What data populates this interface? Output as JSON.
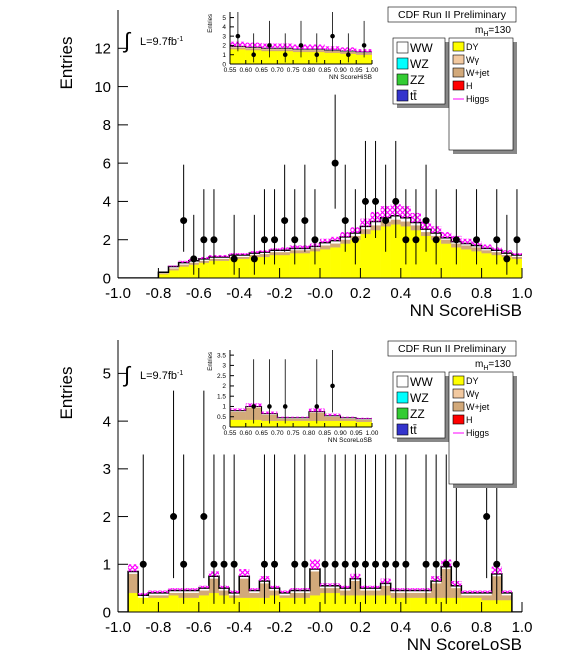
{
  "chart_data": [
    {
      "type": "histogram",
      "title": "CDF Run II Preliminary",
      "mass_label": {
        "base": "m",
        "sub": "H",
        "rest": "=130"
      },
      "lumi_label": {
        "integral": "∫",
        "base": "L=9.7fb",
        "sup": "-1"
      },
      "y_label": "Entries",
      "x_label": "NN ScoreHiSB",
      "xlim": [
        -1,
        1
      ],
      "ylim": [
        0,
        14
      ],
      "xticks": [
        {
          "value": -1,
          "label": "-1.0"
        },
        -0.8,
        -0.6,
        -0.4,
        -0.2,
        {
          "value": 0,
          "label": "-0.0"
        },
        0.2,
        0.4,
        0.6,
        0.8,
        {
          "value": 1,
          "label": "1.0"
        }
      ],
      "yticks": [
        0,
        2,
        4,
        6,
        8,
        10,
        12
      ],
      "bins": [
        -1,
        -0.95,
        -0.9,
        -0.85,
        -0.8,
        -0.75,
        -0.7,
        -0.65,
        -0.6,
        -0.55,
        -0.5,
        -0.45,
        -0.4,
        -0.35,
        -0.3,
        -0.25,
        -0.2,
        -0.15,
        -0.1,
        -0.05,
        0,
        0.05,
        0.1,
        0.15,
        0.2,
        0.25,
        0.3,
        0.35,
        0.4,
        0.45,
        0.5,
        0.55,
        0.6,
        0.65,
        0.7,
        0.75,
        0.8,
        0.85,
        0.9,
        0.95,
        1
      ],
      "series": [
        {
          "name": "DY",
          "color": "#ffff00",
          "values": [
            0,
            0,
            0,
            0,
            0.2,
            0.4,
            0.6,
            0.7,
            0.8,
            0.9,
            0.9,
            1.0,
            1.0,
            1.1,
            1.1,
            1.2,
            1.2,
            1.3,
            1.3,
            1.4,
            1.5,
            1.6,
            1.8,
            2.0,
            2.3,
            2.5,
            2.7,
            2.8,
            2.7,
            2.5,
            2.2,
            2.0,
            1.8,
            1.6,
            1.5,
            1.4,
            1.3,
            1.2,
            1.1,
            1.0
          ]
        },
        {
          "name": "Wγ",
          "color": "#f2c9a0"
        },
        {
          "name": "W+jet",
          "color": "#d2a97a",
          "values": [
            0,
            0,
            0,
            0,
            0.05,
            0.1,
            0.1,
            0.1,
            0.1,
            0.1,
            0.1,
            0.1,
            0.1,
            0.1,
            0.15,
            0.15,
            0.15,
            0.15,
            0.15,
            0.15,
            0.2,
            0.2,
            0.2,
            0.2,
            0.25,
            0.25,
            0.25,
            0.25,
            0.25,
            0.25,
            0.2,
            0.2,
            0.2,
            0.2,
            0.2,
            0.2,
            0.15,
            0.15,
            0.1,
            0.1
          ]
        },
        {
          "name": "H",
          "color": "#ff0000"
        },
        {
          "name": "Higgs",
          "color": "#ff00ff",
          "hatch": true,
          "values": [
            0,
            0,
            0,
            0,
            0,
            0.05,
            0.1,
            0.1,
            0.1,
            0.1,
            0.1,
            0.1,
            0.1,
            0.1,
            0.1,
            0.1,
            0.15,
            0.15,
            0.15,
            0.15,
            0.2,
            0.2,
            0.25,
            0.3,
            0.4,
            0.5,
            0.6,
            0.6,
            0.6,
            0.5,
            0.4,
            0.35,
            0.3,
            0.3,
            0.25,
            0.2,
            0.2,
            0.15,
            0.15,
            0.1
          ]
        },
        {
          "name": "WW",
          "color": "#ffffff",
          "values": [
            0,
            0,
            0,
            0,
            0.05,
            0.1,
            0.1,
            0.1,
            0.1,
            0.1,
            0.1,
            0.1,
            0.1,
            0.1,
            0.1,
            0.1,
            0.1,
            0.1,
            0.1,
            0.1,
            0.15,
            0.15,
            0.15,
            0.15,
            0.15,
            0.2,
            0.2,
            0.2,
            0.2,
            0.15,
            0.15,
            0.15,
            0.1,
            0.1,
            0.1,
            0.1,
            0.1,
            0.1,
            0.1,
            0.1
          ]
        },
        {
          "name": "WZ",
          "color": "#00ffff"
        },
        {
          "name": "ZZ",
          "color": "#33cc33"
        },
        {
          "name": "tt̄",
          "color": "#3333cc"
        }
      ],
      "points": {
        "x": [
          -0.675,
          -0.625,
          -0.575,
          -0.525,
          -0.425,
          -0.325,
          -0.275,
          -0.225,
          -0.175,
          -0.125,
          -0.075,
          -0.025,
          0.075,
          0.125,
          0.175,
          0.225,
          0.275,
          0.325,
          0.375,
          0.425,
          0.475,
          0.525,
          0.575,
          0.675,
          0.775,
          0.875,
          0.925,
          0.975
        ],
        "y": [
          3,
          1,
          2,
          2,
          1,
          1,
          2,
          2,
          3,
          2,
          3,
          2,
          6,
          3,
          2,
          4,
          4,
          3,
          4,
          2,
          2,
          3,
          2,
          2,
          2,
          2,
          1,
          2
        ],
        "yerr_low": [
          1.63,
          0.83,
          1.29,
          1.29,
          0.83,
          0.83,
          1.29,
          1.29,
          1.63,
          1.29,
          1.63,
          1.29,
          2.38,
          1.63,
          1.29,
          1.91,
          1.91,
          1.63,
          1.91,
          1.29,
          1.29,
          1.63,
          1.29,
          1.29,
          1.29,
          1.29,
          0.83,
          1.29
        ],
        "yerr_high": [
          2.92,
          2.3,
          2.64,
          2.64,
          2.3,
          2.3,
          2.64,
          2.64,
          2.92,
          2.64,
          2.92,
          2.64,
          3.58,
          2.92,
          2.64,
          3.16,
          3.16,
          2.92,
          3.16,
          2.64,
          2.64,
          2.92,
          2.64,
          2.64,
          2.64,
          2.64,
          2.3,
          2.64
        ]
      },
      "inset": {
        "type": "histogram",
        "y_label": "Entries",
        "x_label": "NN ScoreHiSB",
        "xlim": [
          0.55,
          1
        ],
        "ylim": [
          0,
          5.6
        ],
        "xticks": [
          0.55,
          {
            "value": 0.6,
            "label": "0.60"
          },
          0.65,
          {
            "value": 0.7,
            "label": "0.70"
          },
          0.75,
          {
            "value": 0.8,
            "label": "0.80"
          },
          0.85,
          {
            "value": 0.9,
            "label": "0.90"
          },
          0.95,
          {
            "value": 1,
            "label": "1.00"
          }
        ],
        "yticks": [
          0,
          1,
          2,
          3,
          4,
          5
        ],
        "bins": [
          0.55,
          0.6,
          0.65,
          0.7,
          0.75,
          0.8,
          0.85,
          0.9,
          0.95,
          1
        ],
        "series": [
          {
            "color": "#ffff00",
            "values": [
              1.6,
              1.5,
              1.4,
              1.4,
              1.3,
              1.3,
              1.2,
              1.1,
              1.0
            ]
          },
          {
            "color": "#d2a97a",
            "values": [
              0.2,
              0.2,
              0.2,
              0.2,
              0.2,
              0.2,
              0.2,
              0.2,
              0.2
            ]
          },
          {
            "color": "#ff00ff",
            "hatch": true,
            "values": [
              0.5,
              0.5,
              0.5,
              0.5,
              0.5,
              0.5,
              0.4,
              0.4,
              0.3
            ]
          },
          {
            "color": "#ffffff",
            "values": [
              0.1,
              0.1,
              0.1,
              0.1,
              0.1,
              0.1,
              0.1,
              0.1,
              0.1
            ]
          }
        ],
        "points": {
          "x": [
            0.575,
            0.625,
            0.675,
            0.725,
            0.775,
            0.825,
            0.875,
            0.925,
            0.975
          ],
          "y": [
            3,
            1,
            2,
            1,
            2,
            1,
            3,
            1,
            2
          ],
          "yerr_low": [
            1.63,
            0.83,
            1.29,
            0.83,
            1.29,
            0.83,
            1.63,
            0.83,
            1.29
          ],
          "yerr_high": [
            2.92,
            2.3,
            2.64,
            2.3,
            2.64,
            2.3,
            2.92,
            2.3,
            2.64
          ]
        }
      }
    },
    {
      "type": "histogram",
      "title": "CDF Run II Preliminary",
      "mass_label": {
        "base": "m",
        "sub": "H",
        "rest": "=130"
      },
      "lumi_label": {
        "integral": "∫",
        "base": "L=9.7fb",
        "sup": "-1"
      },
      "y_label": "Entries",
      "x_label": "NN ScoreLoSB",
      "xlim": [
        -1,
        1
      ],
      "ylim": [
        0,
        5.7
      ],
      "xticks": [
        {
          "value": -1,
          "label": "-1.0"
        },
        -0.8,
        -0.6,
        -0.4,
        -0.2,
        {
          "value": 0,
          "label": "-0.0"
        },
        0.2,
        0.4,
        0.6,
        0.8,
        {
          "value": 1,
          "label": "1.0"
        }
      ],
      "yticks": [
        0,
        1,
        2,
        3,
        4,
        5
      ],
      "bins": [
        -1,
        -0.95,
        -0.9,
        -0.85,
        -0.8,
        -0.75,
        -0.7,
        -0.65,
        -0.6,
        -0.55,
        -0.5,
        -0.45,
        -0.4,
        -0.35,
        -0.3,
        -0.25,
        -0.2,
        -0.15,
        -0.1,
        -0.05,
        0,
        0.05,
        0.1,
        0.15,
        0.2,
        0.25,
        0.3,
        0.35,
        0.4,
        0.45,
        0.5,
        0.55,
        0.6,
        0.65,
        0.7,
        0.75,
        0.8,
        0.85,
        0.9,
        0.95,
        1
      ],
      "series": [
        {
          "name": "DY",
          "color": "#ffff00",
          "values": [
            0,
            0.4,
            0.3,
            0.3,
            0.3,
            0.35,
            0.3,
            0.3,
            0.35,
            0.4,
            0.35,
            0.3,
            0.3,
            0.3,
            0.3,
            0.35,
            0.3,
            0.3,
            0.3,
            0.35,
            0.4,
            0.4,
            0.35,
            0.35,
            0.35,
            0.35,
            0.35,
            0.3,
            0.3,
            0.3,
            0.3,
            0.3,
            0.3,
            0.3,
            0.3,
            0.3,
            0.25,
            0.25,
            0.25,
            0
          ]
        },
        {
          "name": "Wγ",
          "color": "#f2c9a0"
        },
        {
          "name": "W+jet",
          "color": "#d2a97a",
          "values": [
            0,
            0.4,
            0,
            0.05,
            0.05,
            0.05,
            0.1,
            0.1,
            0.1,
            0.3,
            0.1,
            0.05,
            0.4,
            0.1,
            0.3,
            0.1,
            0.05,
            0.1,
            0.1,
            0.5,
            0.1,
            0.1,
            0.1,
            0.3,
            0.1,
            0.1,
            0.2,
            0.1,
            0.1,
            0.1,
            0.1,
            0.3,
            0.6,
            0.2,
            0.05,
            0.05,
            0.1,
            0.5,
            0.1,
            0
          ]
        },
        {
          "name": "H",
          "color": "#ff0000"
        },
        {
          "name": "Higgs",
          "color": "#ff00ff",
          "hatch": true,
          "values": [
            0,
            0.15,
            0.05,
            0.05,
            0.05,
            0.05,
            0.05,
            0.05,
            0.05,
            0.1,
            0.05,
            0.05,
            0.15,
            0.05,
            0.1,
            0.05,
            0.05,
            0.05,
            0.05,
            0.2,
            0.05,
            0.05,
            0.05,
            0.1,
            0.05,
            0.05,
            0.1,
            0.05,
            0.05,
            0.05,
            0.05,
            0.1,
            0.15,
            0.1,
            0.05,
            0.05,
            0.05,
            0.15,
            0.05,
            0
          ]
        },
        {
          "name": "WW",
          "color": "#ffffff",
          "values": [
            0,
            0.05,
            0.05,
            0.05,
            0.05,
            0.05,
            0.05,
            0.05,
            0.05,
            0.05,
            0.05,
            0.05,
            0.05,
            0.05,
            0.05,
            0.05,
            0.05,
            0.05,
            0.05,
            0.05,
            0.05,
            0.05,
            0.05,
            0.05,
            0.05,
            0.05,
            0.05,
            0.05,
            0.05,
            0.05,
            0.05,
            0.05,
            0.05,
            0.05,
            0.05,
            0.05,
            0.05,
            0.05,
            0.05,
            0
          ]
        },
        {
          "name": "WZ",
          "color": "#00ffff"
        },
        {
          "name": "ZZ",
          "color": "#33cc33"
        },
        {
          "name": "tt̄",
          "color": "#3333cc"
        }
      ],
      "points": {
        "x": [
          -0.875,
          -0.725,
          -0.675,
          -0.575,
          -0.525,
          -0.475,
          -0.425,
          -0.275,
          -0.225,
          -0.125,
          -0.075,
          0.025,
          0.075,
          0.125,
          0.175,
          0.225,
          0.275,
          0.325,
          0.375,
          0.425,
          0.525,
          0.575,
          0.625,
          0.675,
          0.825,
          0.875
        ],
        "y": [
          1,
          2,
          1,
          2,
          1,
          1,
          1,
          1,
          1,
          1,
          1,
          1,
          1,
          1,
          1,
          1,
          1,
          1,
          1,
          1,
          1,
          1,
          1,
          1,
          2,
          1
        ],
        "yerr_low": [
          0.83,
          1.29,
          0.83,
          1.29,
          0.83,
          0.83,
          0.83,
          0.83,
          0.83,
          0.83,
          0.83,
          0.83,
          0.83,
          0.83,
          0.83,
          0.83,
          0.83,
          0.83,
          0.83,
          0.83,
          0.83,
          0.83,
          0.83,
          0.83,
          1.29,
          0.83
        ],
        "yerr_high": [
          2.3,
          2.64,
          2.3,
          2.64,
          2.3,
          2.3,
          2.3,
          2.3,
          2.3,
          2.3,
          2.3,
          2.3,
          2.3,
          2.3,
          2.3,
          2.3,
          2.3,
          2.3,
          2.3,
          2.3,
          2.3,
          2.3,
          2.3,
          2.3,
          2.64,
          2.3
        ]
      },
      "inset": {
        "type": "histogram",
        "y_label": "Entries",
        "x_label": "NN ScoreLoSB",
        "xlim": [
          0.55,
          1
        ],
        "ylim": [
          0,
          3.75
        ],
        "xticks": [
          0.55,
          {
            "value": 0.6,
            "label": "0.60"
          },
          0.65,
          {
            "value": 0.7,
            "label": "0.70"
          },
          0.75,
          {
            "value": 0.8,
            "label": "0.80"
          },
          0.85,
          {
            "value": 0.9,
            "label": "0.90"
          },
          0.95,
          {
            "value": 1,
            "label": "1.00"
          }
        ],
        "yticks": [
          0,
          0.5,
          1,
          1.5,
          2,
          2.5,
          3,
          3.5
        ],
        "bins": [
          0.55,
          0.6,
          0.65,
          0.7,
          0.75,
          0.8,
          0.85,
          0.9,
          0.95,
          1
        ],
        "series": [
          {
            "color": "#ffff00",
            "values": [
              0.35,
              0.35,
              0.3,
              0.3,
              0.3,
              0.3,
              0.3,
              0.3,
              0.25
            ]
          },
          {
            "color": "#d2a97a",
            "values": [
              0.4,
              0.6,
              0.3,
              0.1,
              0.1,
              0.4,
              0.2,
              0.1,
              0.1
            ]
          },
          {
            "color": "#ff00ff",
            "hatch": true,
            "values": [
              0.1,
              0.15,
              0.1,
              0.05,
              0.05,
              0.15,
              0.1,
              0.05,
              0.05
            ]
          },
          {
            "color": "#ffffff",
            "values": [
              0.05,
              0.05,
              0.05,
              0.05,
              0.05,
              0.05,
              0.05,
              0.05,
              0.05
            ]
          }
        ],
        "points": {
          "x": [
            0.625,
            0.675,
            0.725,
            0.825,
            0.875
          ],
          "y": [
            1,
            1,
            1,
            1,
            2
          ],
          "yerr_low": [
            0.83,
            0.83,
            0.83,
            0.83,
            1.29
          ],
          "yerr_high": [
            2.3,
            2.3,
            2.3,
            2.3,
            2.64
          ]
        }
      }
    }
  ]
}
